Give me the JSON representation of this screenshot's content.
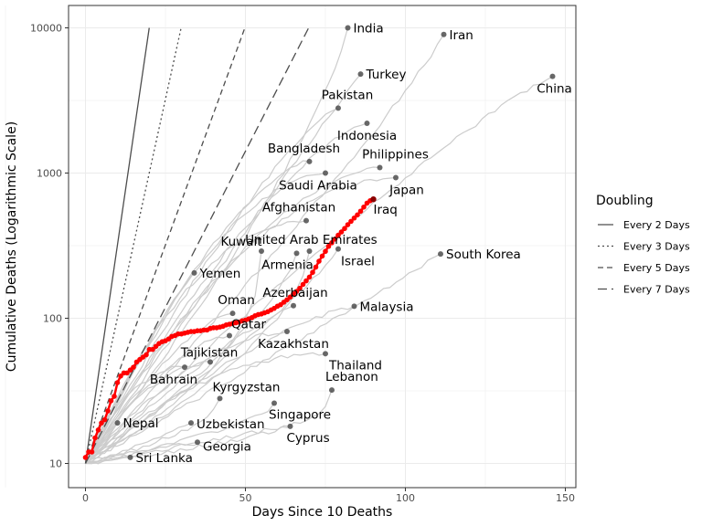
{
  "chart_data": {
    "type": "line",
    "xlabel": "Days Since 10 Deaths",
    "ylabel": "Cumulative Deaths (Logarithmic Scale)",
    "y_scale": "log10",
    "xlim": [
      -4,
      152
    ],
    "ylim": [
      9.2,
      14000
    ],
    "x_ticks": [
      0,
      50,
      100,
      150
    ],
    "y_ticks": [
      10,
      100,
      1000,
      10000
    ],
    "y_tick_labels": [
      "10",
      "100",
      "1000",
      "10000"
    ],
    "grid": true,
    "legend": {
      "title": "Doubling",
      "position": "right",
      "entries": [
        {
          "label": "Every 2 Days",
          "days": 2,
          "dash": "solid"
        },
        {
          "label": "Every 3 Days",
          "days": 3,
          "dash": "dotted"
        },
        {
          "label": "Every 5 Days",
          "days": 5,
          "dash": "dashed"
        },
        {
          "label": "Every 7 Days",
          "days": 7,
          "dash": "longdash"
        }
      ]
    },
    "colors": {
      "highlight": "#ff0000",
      "background_lines": "#cccccc",
      "points": "#4d4d4d",
      "reference_lines": "#4d4d4d",
      "grid": "#ebebeb",
      "panel_border": "#333333"
    },
    "highlight_series": {
      "name": "Iraq",
      "points": [
        [
          0,
          11
        ],
        [
          1,
          12
        ],
        [
          2,
          12
        ],
        [
          3,
          15
        ],
        [
          4,
          17
        ],
        [
          5,
          19
        ],
        [
          6,
          20
        ],
        [
          7,
          23
        ],
        [
          8,
          27
        ],
        [
          9,
          29
        ],
        [
          10,
          36
        ],
        [
          11,
          40
        ],
        [
          12,
          42
        ],
        [
          13,
          42
        ],
        [
          14,
          44
        ],
        [
          15,
          46
        ],
        [
          16,
          50
        ],
        [
          17,
          52
        ],
        [
          18,
          54
        ],
        [
          19,
          56
        ],
        [
          20,
          61
        ],
        [
          21,
          61
        ],
        [
          22,
          64
        ],
        [
          23,
          67
        ],
        [
          24,
          69
        ],
        [
          25,
          70
        ],
        [
          26,
          72
        ],
        [
          27,
          75
        ],
        [
          28,
          76
        ],
        [
          29,
          78
        ],
        [
          30,
          78
        ],
        [
          31,
          79
        ],
        [
          32,
          80
        ],
        [
          33,
          81
        ],
        [
          34,
          81
        ],
        [
          35,
          82
        ],
        [
          36,
          82
        ],
        [
          37,
          83
        ],
        [
          38,
          83
        ],
        [
          39,
          85
        ],
        [
          40,
          86
        ],
        [
          41,
          86
        ],
        [
          42,
          87
        ],
        [
          43,
          88
        ],
        [
          44,
          90
        ],
        [
          45,
          91
        ],
        [
          46,
          92
        ],
        [
          47,
          93
        ],
        [
          48,
          94
        ],
        [
          49,
          96
        ],
        [
          50,
          97
        ],
        [
          51,
          99
        ],
        [
          52,
          101
        ],
        [
          53,
          104
        ],
        [
          54,
          106
        ],
        [
          55,
          107
        ],
        [
          56,
          109
        ],
        [
          57,
          111
        ],
        [
          58,
          114
        ],
        [
          59,
          117
        ],
        [
          60,
          121
        ],
        [
          61,
          124
        ],
        [
          62,
          129
        ],
        [
          63,
          134
        ],
        [
          64,
          140
        ],
        [
          65,
          147
        ],
        [
          66,
          153
        ],
        [
          67,
          161
        ],
        [
          68,
          171
        ],
        [
          69,
          181
        ],
        [
          70,
          192
        ],
        [
          71,
          207
        ],
        [
          72,
          225
        ],
        [
          73,
          247
        ],
        [
          74,
          268
        ],
        [
          75,
          289
        ],
        [
          76,
          313
        ],
        [
          77,
          331
        ],
        [
          78,
          351
        ],
        [
          79,
          373
        ],
        [
          80,
          393
        ],
        [
          81,
          415
        ],
        [
          82,
          441
        ],
        [
          83,
          465
        ],
        [
          84,
          490
        ],
        [
          85,
          515
        ],
        [
          86,
          546
        ],
        [
          87,
          583
        ],
        [
          88,
          621
        ],
        [
          89,
          645
        ]
      ]
    },
    "countries": [
      {
        "name": "India",
        "x": 82,
        "y": 10000
      },
      {
        "name": "Iran",
        "x": 112,
        "y": 9000
      },
      {
        "name": "Turkey",
        "x": 86,
        "y": 4800
      },
      {
        "name": "China",
        "x": 146,
        "y": 4630
      },
      {
        "name": "Pakistan",
        "x": 79,
        "y": 2800
      },
      {
        "name": "Indonesia",
        "x": 88,
        "y": 2200
      },
      {
        "name": "Bangladesh",
        "x": 70,
        "y": 1200
      },
      {
        "name": "Philippines",
        "x": 92,
        "y": 1090
      },
      {
        "name": "Saudi Arabia",
        "x": 75,
        "y": 1000
      },
      {
        "name": "Japan",
        "x": 97,
        "y": 930
      },
      {
        "name": "Afghanistan",
        "x": 69,
        "y": 470
      },
      {
        "name": "Iraq",
        "x": 90,
        "y": 660
      },
      {
        "name": "Kuwait",
        "x": 55,
        "y": 290
      },
      {
        "name": "United Arab Emirates",
        "x": 70,
        "y": 290
      },
      {
        "name": "Armenia",
        "x": 66,
        "y": 280
      },
      {
        "name": "Israel",
        "x": 79,
        "y": 300
      },
      {
        "name": "South Korea",
        "x": 111,
        "y": 277
      },
      {
        "name": "Yemen",
        "x": 34,
        "y": 205
      },
      {
        "name": "Azerbaijan",
        "x": 65,
        "y": 122
      },
      {
        "name": "Malaysia",
        "x": 84,
        "y": 121
      },
      {
        "name": "Oman",
        "x": 46,
        "y": 108
      },
      {
        "name": "Qatar",
        "x": 45,
        "y": 76
      },
      {
        "name": "Kazakhstan",
        "x": 63,
        "y": 81
      },
      {
        "name": "Tajikistan",
        "x": 39,
        "y": 50
      },
      {
        "name": "Thailand",
        "x": 75,
        "y": 57
      },
      {
        "name": "Bahrain",
        "x": 31,
        "y": 46
      },
      {
        "name": "Lebanon",
        "x": 77,
        "y": 32
      },
      {
        "name": "Kyrgyzstan",
        "x": 42,
        "y": 28
      },
      {
        "name": "Singapore",
        "x": 59,
        "y": 26
      },
      {
        "name": "Nepal",
        "x": 10,
        "y": 19
      },
      {
        "name": "Uzbekistan",
        "x": 33,
        "y": 19
      },
      {
        "name": "Cyprus",
        "x": 64,
        "y": 18
      },
      {
        "name": "Georgia",
        "x": 35,
        "y": 14
      },
      {
        "name": "Sri Lanka",
        "x": 14,
        "y": 11
      }
    ]
  }
}
